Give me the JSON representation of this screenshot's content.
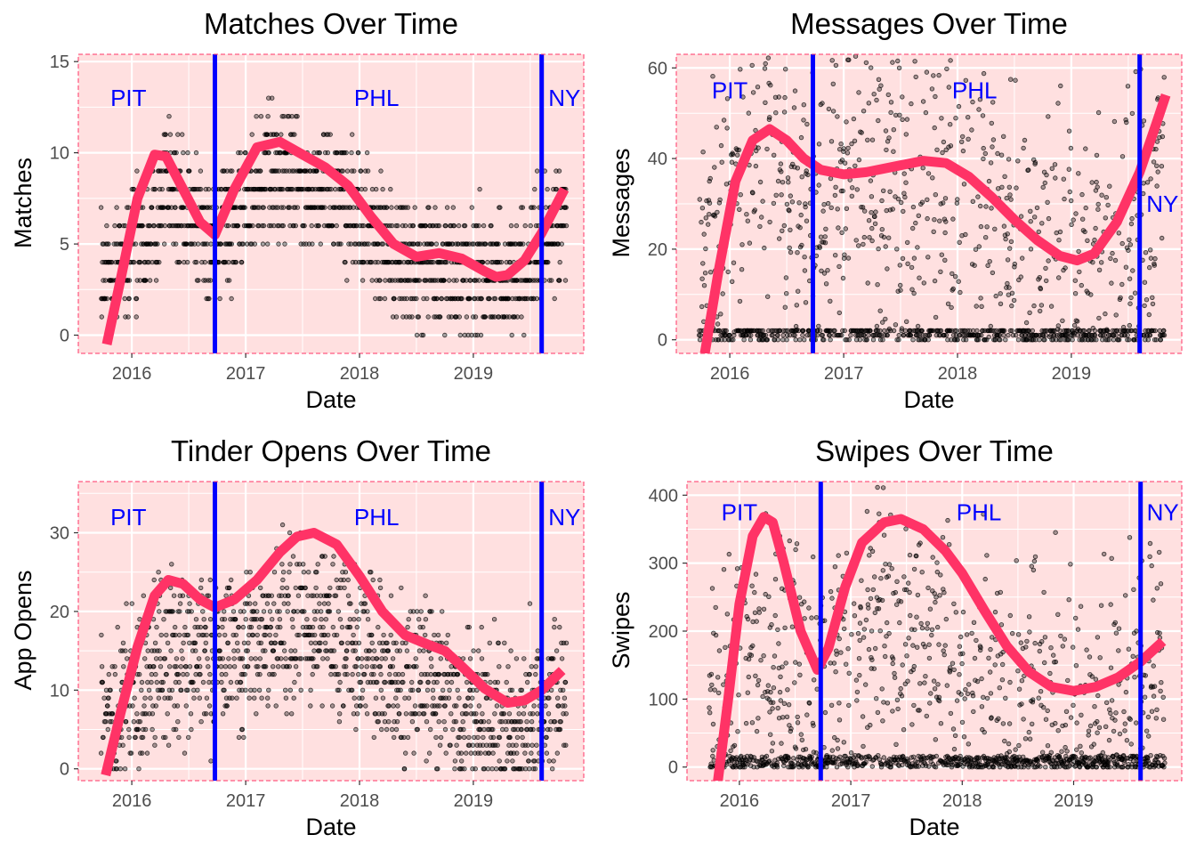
{
  "colors": {
    "panel_bg": "#ffe0e0",
    "panel_border": "#ff3366",
    "smooth_line": "#ff3366",
    "move_line": "#0000ff",
    "location_text": "#0000ff",
    "points": "#000000",
    "grid": "#ffffff"
  },
  "chart_data": [
    {
      "type": "scatter",
      "title": "Matches Over Time",
      "xlabel": "Date",
      "ylabel": "Matches",
      "xlim": [
        2015.53,
        2019.97
      ],
      "ylim": [
        -1,
        15.4
      ],
      "x_ticks": [
        2016,
        2017,
        2018,
        2019
      ],
      "x_tick_labels": [
        "2016",
        "2017",
        "2018",
        "2019"
      ],
      "y_ticks": [
        0,
        5,
        10,
        15
      ],
      "y_tick_labels": [
        "0",
        "5",
        "10",
        "15"
      ],
      "grid": true,
      "point_rule": "integer",
      "point_profile": [
        [
          2015.8,
          3
        ],
        [
          2016.3,
          8
        ],
        [
          2016.73,
          5
        ],
        [
          2017.25,
          9
        ],
        [
          2017.8,
          7.5
        ],
        [
          2018.4,
          4
        ],
        [
          2018.9,
          3.5
        ],
        [
          2019.3,
          3
        ],
        [
          2019.8,
          6
        ]
      ],
      "point_spread": 3.5,
      "point_density": 1.0,
      "smooth": {
        "x": [
          2015.78,
          2015.9,
          2016.05,
          2016.2,
          2016.3,
          2016.45,
          2016.6,
          2016.73,
          2016.9,
          2017.1,
          2017.3,
          2017.5,
          2017.7,
          2017.9,
          2018.1,
          2018.3,
          2018.5,
          2018.7,
          2018.9,
          2019.1,
          2019.2,
          2019.3,
          2019.45,
          2019.6,
          2019.8
        ],
        "y": [
          -0.5,
          3,
          7.5,
          9.9,
          9.8,
          8.0,
          6.2,
          5.5,
          8.0,
          10.3,
          10.6,
          9.9,
          9.2,
          8.2,
          6.5,
          5.0,
          4.3,
          4.5,
          4.2,
          3.5,
          3.2,
          3.3,
          4.1,
          5.6,
          8.0
        ]
      },
      "moves": [
        2016.73,
        2019.6
      ],
      "annotations": [
        {
          "text": "PIT",
          "x": 2015.97,
          "y": 13
        },
        {
          "text": "PHL",
          "x": 2018.15,
          "y": 13
        },
        {
          "text": "NY",
          "x": 2019.8,
          "y": 13
        }
      ]
    },
    {
      "type": "scatter",
      "title": "Messages Over Time",
      "xlabel": "Date",
      "ylabel": "Messages",
      "xlim": [
        2015.53,
        2019.97
      ],
      "ylim": [
        -3,
        63
      ],
      "x_ticks": [
        2016,
        2017,
        2018,
        2019
      ],
      "x_tick_labels": [
        "2016",
        "2017",
        "2018",
        "2019"
      ],
      "y_ticks": [
        0,
        20,
        40,
        60
      ],
      "y_tick_labels": [
        "0",
        "20",
        "40",
        "60"
      ],
      "grid": true,
      "point_rule": "zero-heavy",
      "point_profile": [
        [
          2015.8,
          15
        ],
        [
          2016.3,
          40
        ],
        [
          2016.73,
          30
        ],
        [
          2017.3,
          35
        ],
        [
          2017.8,
          35
        ],
        [
          2018.4,
          25
        ],
        [
          2019.0,
          15
        ],
        [
          2019.8,
          30
        ]
      ],
      "point_spread": 22,
      "point_density": 0.9,
      "smooth": {
        "x": [
          2015.78,
          2015.9,
          2016.05,
          2016.2,
          2016.35,
          2016.5,
          2016.65,
          2016.8,
          2017.0,
          2017.2,
          2017.5,
          2017.7,
          2017.9,
          2018.1,
          2018.3,
          2018.5,
          2018.7,
          2018.9,
          2019.05,
          2019.2,
          2019.4,
          2019.6,
          2019.75,
          2019.83
        ],
        "y": [
          -3,
          15,
          35,
          44,
          46.5,
          44,
          40,
          37.5,
          36.5,
          37,
          38.5,
          39.5,
          39,
          36,
          31.5,
          26.5,
          22,
          18.5,
          17.5,
          19,
          26,
          37,
          48,
          54
        ]
      },
      "moves": [
        2016.73,
        2019.6
      ],
      "annotations": [
        {
          "text": "PIT",
          "x": 2016.0,
          "y": 55
        },
        {
          "text": "PHL",
          "x": 2018.15,
          "y": 55
        },
        {
          "text": "NY",
          "x": 2019.8,
          "y": 30
        }
      ]
    },
    {
      "type": "scatter",
      "title": "Tinder Opens Over Time",
      "xlabel": "Date",
      "ylabel": "App Opens",
      "xlim": [
        2015.53,
        2019.97
      ],
      "ylim": [
        -1.5,
        36.5
      ],
      "x_ticks": [
        2016,
        2017,
        2018,
        2019
      ],
      "x_tick_labels": [
        "2016",
        "2017",
        "2018",
        "2019"
      ],
      "y_ticks": [
        0,
        10,
        20,
        30
      ],
      "y_tick_labels": [
        "0",
        "10",
        "20",
        "30"
      ],
      "grid": true,
      "point_rule": "integer",
      "point_profile": [
        [
          2015.8,
          5
        ],
        [
          2016.3,
          15
        ],
        [
          2016.73,
          14
        ],
        [
          2017.3,
          18
        ],
        [
          2017.7,
          18
        ],
        [
          2018.3,
          12
        ],
        [
          2018.8,
          9
        ],
        [
          2019.3,
          5
        ],
        [
          2019.8,
          10
        ]
      ],
      "point_spread": 10,
      "point_density": 0.9,
      "smooth": {
        "x": [
          2015.77,
          2015.9,
          2016.05,
          2016.2,
          2016.32,
          2016.45,
          2016.6,
          2016.73,
          2016.9,
          2017.1,
          2017.3,
          2017.45,
          2017.6,
          2017.8,
          2018.0,
          2018.2,
          2018.4,
          2018.6,
          2018.75,
          2018.9,
          2019.1,
          2019.3,
          2019.45,
          2019.6,
          2019.78
        ],
        "y": [
          -0.8,
          7,
          15.5,
          22,
          24,
          23.5,
          21.5,
          20.5,
          21.5,
          24,
          27.5,
          29.5,
          30,
          28.5,
          24.5,
          20,
          17,
          15.8,
          15,
          13,
          10.2,
          8.4,
          8.7,
          10,
          12.5
        ]
      },
      "moves": [
        2016.73,
        2019.6
      ],
      "annotations": [
        {
          "text": "PIT",
          "x": 2015.97,
          "y": 32
        },
        {
          "text": "PHL",
          "x": 2018.15,
          "y": 32
        },
        {
          "text": "NY",
          "x": 2019.8,
          "y": 32
        }
      ]
    },
    {
      "type": "scatter",
      "title": "Swipes Over Time",
      "xlabel": "Date",
      "ylabel": "Swipes",
      "xlim": [
        2015.53,
        2019.97
      ],
      "ylim": [
        -20,
        420
      ],
      "x_ticks": [
        2016,
        2017,
        2018,
        2019
      ],
      "x_tick_labels": [
        "2016",
        "2017",
        "2018",
        "2019"
      ],
      "y_ticks": [
        0,
        100,
        200,
        300,
        400
      ],
      "y_tick_labels": [
        "0",
        "100",
        "200",
        "300",
        "400"
      ],
      "grid": true,
      "point_rule": "zero-heavy",
      "point_profile": [
        [
          2015.8,
          80
        ],
        [
          2016.3,
          160
        ],
        [
          2016.73,
          120
        ],
        [
          2017.3,
          220
        ],
        [
          2017.8,
          180
        ],
        [
          2018.4,
          110
        ],
        [
          2019.0,
          80
        ],
        [
          2019.8,
          120
        ]
      ],
      "point_spread": 140,
      "point_density": 0.95,
      "smooth": {
        "x": [
          2015.8,
          2015.9,
          2016.0,
          2016.12,
          2016.22,
          2016.3,
          2016.4,
          2016.55,
          2016.7,
          2016.8,
          2016.95,
          2017.1,
          2017.3,
          2017.45,
          2017.65,
          2017.85,
          2018.0,
          2018.2,
          2018.4,
          2018.6,
          2018.8,
          2019.0,
          2019.2,
          2019.4,
          2019.6,
          2019.8
        ],
        "y": [
          -30,
          100,
          240,
          340,
          368,
          360,
          300,
          200,
          143,
          175,
          265,
          330,
          360,
          365,
          350,
          318,
          285,
          230,
          178,
          140,
          118,
          112,
          118,
          132,
          155,
          185
        ]
      },
      "moves": [
        2016.73,
        2019.6
      ],
      "annotations": [
        {
          "text": "PIT",
          "x": 2016.0,
          "y": 375
        },
        {
          "text": "PHL",
          "x": 2018.15,
          "y": 375
        },
        {
          "text": "NY",
          "x": 2019.8,
          "y": 375
        }
      ]
    }
  ]
}
